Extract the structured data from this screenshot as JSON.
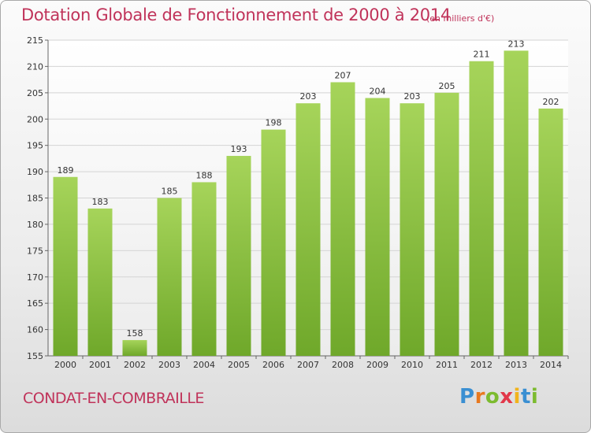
{
  "header": {
    "title": "Dotation Globale de Fonctionnement de 2000 à 2014",
    "unit": "(en milliers d'€)"
  },
  "footer": {
    "commune": "CONDAT-EN-COMBRAILLE",
    "logo_letters": [
      "P",
      "r",
      "o",
      "x",
      "i",
      "t",
      "i"
    ]
  },
  "colors": {
    "title": "#c0335a",
    "bar_light": "#a6d45a",
    "bar_dark": "#6fa82a"
  },
  "chart_data": {
    "type": "bar",
    "categories": [
      "2000",
      "2001",
      "2002",
      "2003",
      "2004",
      "2005",
      "2006",
      "2007",
      "2008",
      "2009",
      "2010",
      "2011",
      "2012",
      "2013",
      "2014"
    ],
    "values": [
      189,
      183,
      158,
      185,
      188,
      193,
      198,
      203,
      207,
      204,
      203,
      205,
      211,
      213,
      202
    ],
    "yticks": [
      155,
      160,
      165,
      170,
      175,
      180,
      185,
      190,
      195,
      200,
      205,
      210,
      215
    ],
    "ylim": [
      155,
      215
    ],
    "grid": true
  }
}
